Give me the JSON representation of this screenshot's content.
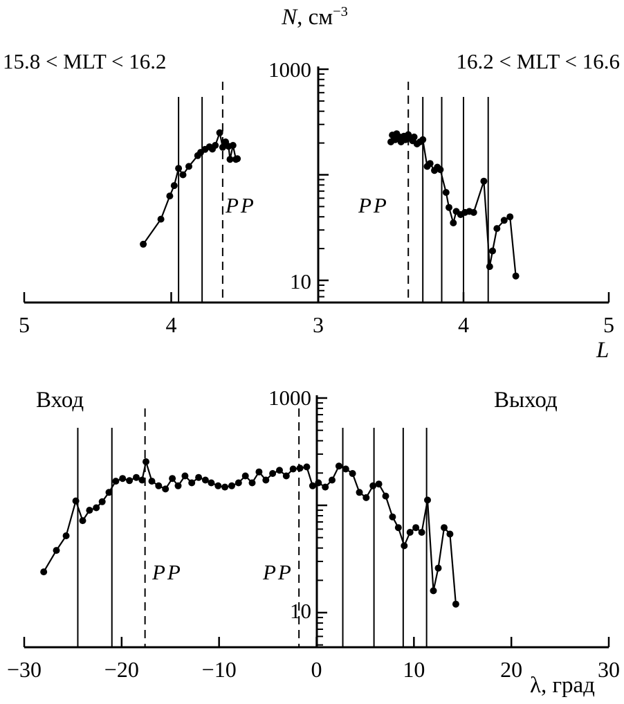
{
  "figure": {
    "title": {
      "variable": "N",
      "units_text": ", см",
      "exponent": "−3"
    }
  },
  "chart_data": [
    {
      "type": "line",
      "panel_left_label": "15.8 < MLT < 16.2",
      "panel_right_label": "16.2 < MLT < 16.6",
      "pp_label": "PP",
      "xlabel": "L",
      "x_tick_labels": [
        "5",
        "4",
        "3",
        "4",
        "5"
      ],
      "x_axis_layout": "mirrored: left panel L runs 5 to 3, right panel 3 to 5, shared central log y-axis",
      "y_scale": "log",
      "y_range": [
        10,
        1000
      ],
      "y_tick_labels": {
        "top": "1000",
        "bottom": "10"
      },
      "left_series_L_N": [
        [
          4.19,
          22
        ],
        [
          4.07,
          38
        ],
        [
          4.01,
          63
        ],
        [
          3.98,
          79
        ],
        [
          3.95,
          115
        ],
        [
          3.92,
          100
        ],
        [
          3.88,
          120
        ],
        [
          3.82,
          152
        ],
        [
          3.8,
          163
        ],
        [
          3.77,
          174
        ],
        [
          3.74,
          184
        ],
        [
          3.72,
          175
        ],
        [
          3.7,
          190
        ],
        [
          3.67,
          250
        ],
        [
          3.65,
          182
        ],
        [
          3.63,
          205
        ],
        [
          3.61,
          186
        ],
        [
          3.6,
          140
        ],
        [
          3.58,
          190
        ],
        [
          3.56,
          140
        ],
        [
          3.55,
          142
        ]
      ],
      "right_series_L_N": [
        [
          3.5,
          205
        ],
        [
          3.51,
          238
        ],
        [
          3.53,
          215
        ],
        [
          3.54,
          245
        ],
        [
          3.56,
          228
        ],
        [
          3.57,
          205
        ],
        [
          3.59,
          232
        ],
        [
          3.6,
          215
        ],
        [
          3.62,
          240
        ],
        [
          3.63,
          222
        ],
        [
          3.65,
          210
        ],
        [
          3.66,
          228
        ],
        [
          3.68,
          196
        ],
        [
          3.7,
          205
        ],
        [
          3.72,
          215
        ],
        [
          3.75,
          120
        ],
        [
          3.77,
          128
        ],
        [
          3.8,
          110
        ],
        [
          3.82,
          118
        ],
        [
          3.84,
          112
        ],
        [
          3.88,
          68
        ],
        [
          3.9,
          49
        ],
        [
          3.93,
          35
        ],
        [
          3.95,
          45
        ],
        [
          3.98,
          42
        ],
        [
          4.01,
          44
        ],
        [
          4.04,
          45
        ],
        [
          4.07,
          44
        ],
        [
          4.14,
          87
        ],
        [
          4.18,
          13.5
        ],
        [
          4.2,
          19
        ],
        [
          4.23,
          31
        ],
        [
          4.28,
          37
        ],
        [
          4.32,
          40
        ],
        [
          4.36,
          11
        ]
      ],
      "left_vlines_solid_L": [
        3.95,
        3.79
      ],
      "left_vlines_dashed_L": [
        3.65
      ],
      "right_vlines_solid_L": [
        3.72,
        3.85,
        4.0,
        4.17
      ],
      "right_vlines_dashed_L": [
        3.62
      ]
    },
    {
      "type": "line",
      "entry_label": "Вход",
      "exit_label": "Выход",
      "pp_label": "PP",
      "xlabel": "λ, град",
      "x_tick_labels": [
        "−30",
        "−20",
        "−10",
        "0",
        "10",
        "20",
        "30"
      ],
      "x_tick_values": [
        -30,
        -20,
        -10,
        0,
        10,
        20,
        30
      ],
      "x_range": [
        -30,
        30
      ],
      "y_scale": "log",
      "y_range": [
        10,
        1000
      ],
      "y_tick_labels": {
        "top": "1000",
        "bottom": "10"
      },
      "series_lambda_N": [
        [
          -28,
          24
        ],
        [
          -26.7,
          38
        ],
        [
          -25.7,
          52
        ],
        [
          -24.7,
          110
        ],
        [
          -24,
          72
        ],
        [
          -23.3,
          90
        ],
        [
          -22.6,
          95
        ],
        [
          -22,
          108
        ],
        [
          -21.3,
          132
        ],
        [
          -20.6,
          168
        ],
        [
          -19.9,
          178
        ],
        [
          -19.2,
          170
        ],
        [
          -18.5,
          182
        ],
        [
          -17.9,
          172
        ],
        [
          -17.5,
          255
        ],
        [
          -16.9,
          168
        ],
        [
          -16.2,
          152
        ],
        [
          -15.5,
          142
        ],
        [
          -14.8,
          178
        ],
        [
          -14.2,
          152
        ],
        [
          -13.5,
          188
        ],
        [
          -12.8,
          162
        ],
        [
          -12.1,
          182
        ],
        [
          -11.4,
          172
        ],
        [
          -10.8,
          162
        ],
        [
          -10.1,
          152
        ],
        [
          -9.4,
          148
        ],
        [
          -8.7,
          152
        ],
        [
          -8,
          162
        ],
        [
          -7.3,
          188
        ],
        [
          -6.6,
          162
        ],
        [
          -5.9,
          205
        ],
        [
          -5.2,
          172
        ],
        [
          -4.5,
          198
        ],
        [
          -3.8,
          212
        ],
        [
          -3.1,
          188
        ],
        [
          -2.4,
          218
        ],
        [
          -1.7,
          222
        ],
        [
          -1,
          228
        ],
        [
          -0.4,
          152
        ],
        [
          0.2,
          162
        ],
        [
          0.9,
          148
        ],
        [
          1.6,
          172
        ],
        [
          2.3,
          232
        ],
        [
          3,
          218
        ],
        [
          3.7,
          198
        ],
        [
          4.4,
          132
        ],
        [
          5.1,
          118
        ],
        [
          5.8,
          152
        ],
        [
          6.4,
          158
        ],
        [
          7.1,
          122
        ],
        [
          7.8,
          78
        ],
        [
          8.4,
          62
        ],
        [
          9,
          42
        ],
        [
          9.6,
          56
        ],
        [
          10.2,
          62
        ],
        [
          10.8,
          56
        ],
        [
          11.4,
          112
        ],
        [
          12,
          16
        ],
        [
          12.5,
          26
        ],
        [
          13.1,
          62
        ],
        [
          13.7,
          54
        ],
        [
          14.3,
          12
        ]
      ],
      "vlines_solid_lambda": [
        -24.5,
        -21.0,
        2.7,
        5.9,
        8.9,
        11.3
      ],
      "vlines_dashed_lambda": [
        -17.6,
        -1.8
      ]
    }
  ]
}
